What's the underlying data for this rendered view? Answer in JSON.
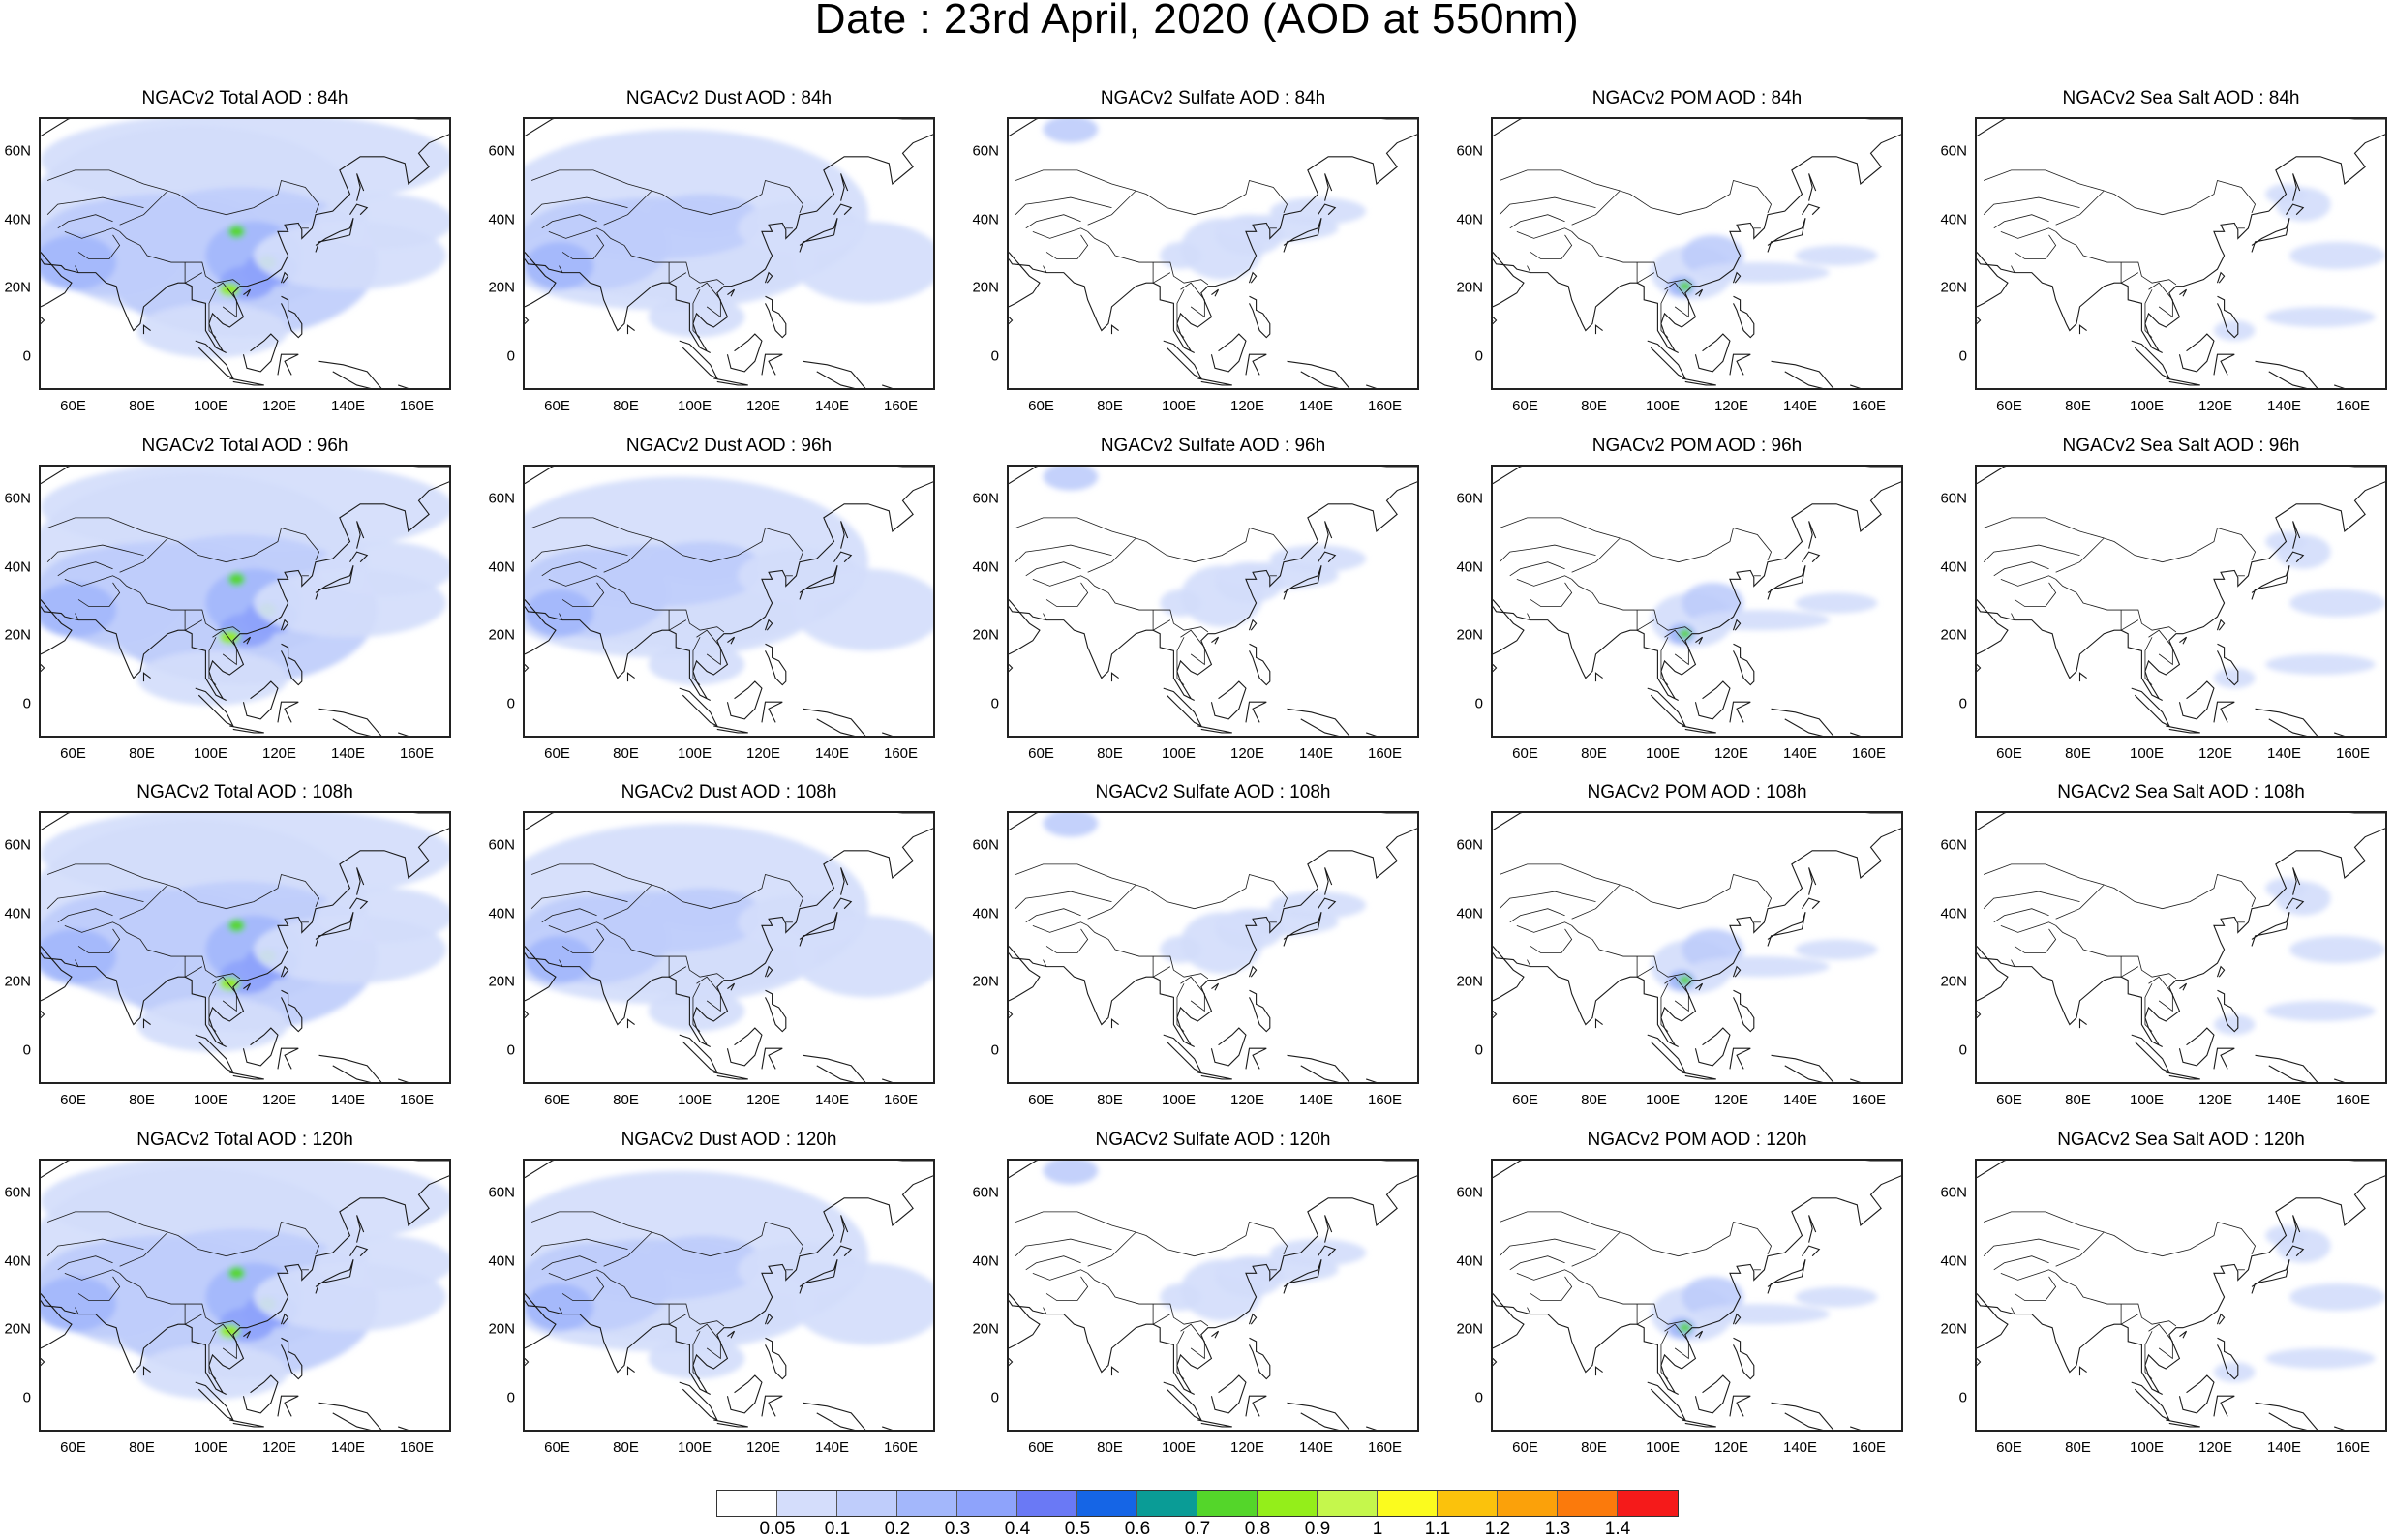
{
  "title": "Date : 23rd April, 2020 (AOD at 550nm)",
  "x_ticks": [
    "60E",
    "80E",
    "100E",
    "120E",
    "140E",
    "160E"
  ],
  "y_ticks": [
    "60N",
    "40N",
    "20N",
    "0"
  ],
  "panels": [
    {
      "title": "NGACv2 Total AOD : 84h",
      "variable": "total",
      "forecast_hour": 84
    },
    {
      "title": "NGACv2 Dust AOD : 84h",
      "variable": "dust",
      "forecast_hour": 84
    },
    {
      "title": "NGACv2 Sulfate AOD : 84h",
      "variable": "sulfate",
      "forecast_hour": 84
    },
    {
      "title": "NGACv2 POM AOD : 84h",
      "variable": "pom",
      "forecast_hour": 84
    },
    {
      "title": "NGACv2 Sea Salt AOD : 84h",
      "variable": "seasalt",
      "forecast_hour": 84
    },
    {
      "title": "NGACv2 Total AOD : 96h",
      "variable": "total",
      "forecast_hour": 96
    },
    {
      "title": "NGACv2 Dust AOD : 96h",
      "variable": "dust",
      "forecast_hour": 96
    },
    {
      "title": "NGACv2 Sulfate AOD : 96h",
      "variable": "sulfate",
      "forecast_hour": 96
    },
    {
      "title": "NGACv2 POM AOD : 96h",
      "variable": "pom",
      "forecast_hour": 96
    },
    {
      "title": "NGACv2 Sea Salt AOD : 96h",
      "variable": "seasalt",
      "forecast_hour": 96
    },
    {
      "title": "NGACv2 Total AOD : 108h",
      "variable": "total",
      "forecast_hour": 108
    },
    {
      "title": "NGACv2 Dust AOD : 108h",
      "variable": "dust",
      "forecast_hour": 108
    },
    {
      "title": "NGACv2 Sulfate AOD : 108h",
      "variable": "sulfate",
      "forecast_hour": 108
    },
    {
      "title": "NGACv2 POM AOD : 108h",
      "variable": "pom",
      "forecast_hour": 108
    },
    {
      "title": "NGACv2 Sea Salt AOD : 108h",
      "variable": "seasalt",
      "forecast_hour": 108
    },
    {
      "title": "NGACv2 Total AOD : 120h",
      "variable": "total",
      "forecast_hour": 120
    },
    {
      "title": "NGACv2 Dust AOD : 120h",
      "variable": "dust",
      "forecast_hour": 120
    },
    {
      "title": "NGACv2 Sulfate AOD : 120h",
      "variable": "sulfate",
      "forecast_hour": 120
    },
    {
      "title": "NGACv2 POM AOD : 120h",
      "variable": "pom",
      "forecast_hour": 120
    },
    {
      "title": "NGACv2 Sea Salt  AOD : 120h",
      "variable": "seasalt",
      "forecast_hour": 120
    }
  ],
  "colorbar": {
    "labels": [
      "0.05",
      "0.1",
      "0.2",
      "0.3",
      "0.4",
      "0.5",
      "0.6",
      "0.7",
      "0.8",
      "0.9",
      "1",
      "1.1",
      "1.2",
      "1.3",
      "1.4"
    ],
    "colors": [
      "#ffffff",
      "#d4ddfb",
      "#bfcdfb",
      "#a3b7fb",
      "#8ea3fb",
      "#6a79f5",
      "#1565e6",
      "#0a9c96",
      "#54d62a",
      "#94ee1a",
      "#c5f74c",
      "#fbfb1e",
      "#fbc20c",
      "#fba10a",
      "#fb7a0c",
      "#f51a1a"
    ]
  }
}
